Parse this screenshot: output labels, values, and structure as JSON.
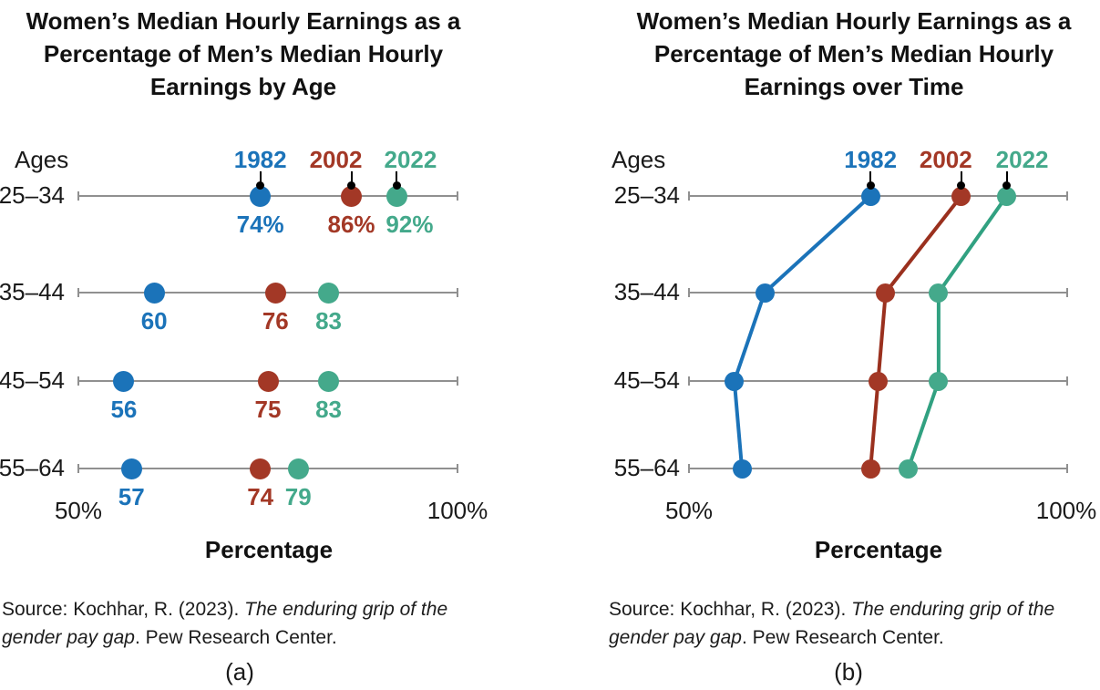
{
  "colors": {
    "background": "#ffffff",
    "axis_gray": "#909090",
    "text_black": "#1a1a1a",
    "leader_black": "#000000",
    "blue_1982": "#1b73b9",
    "red_2002": "#a33826",
    "green_2022": "#44a98b"
  },
  "chart_data": [
    {
      "type": "scatter",
      "title": "Women’s Median Hourly Earnings as a\nPercentage of Men’s Median Hourly\nEarnings by Age",
      "row_header": "Ages",
      "categories": [
        "25–34",
        "35–44",
        "45–54",
        "55–64"
      ],
      "series": [
        {
          "name": "1982",
          "color": "#1b73b9",
          "values": [
            74,
            60,
            56,
            57
          ],
          "point_labels": [
            "74%",
            "60",
            "56",
            "57"
          ]
        },
        {
          "name": "2002",
          "color": "#a33826",
          "values": [
            86,
            76,
            75,
            74
          ],
          "point_labels": [
            "86%",
            "76",
            "75",
            "74"
          ]
        },
        {
          "name": "2022",
          "color": "#44a98b",
          "values": [
            92,
            83,
            83,
            79
          ],
          "point_labels": [
            "92%",
            "83",
            "83",
            "79"
          ]
        }
      ],
      "xlabel": "Percentage",
      "xlim": [
        50,
        100
      ],
      "x_tick_labels": [
        "50%",
        "100%"
      ],
      "show_point_labels": true,
      "connect_points": false,
      "legend_position": "top",
      "grid": false,
      "source": {
        "prefix": "Source: Kochhar, R. (2023). ",
        "italic": "The enduring grip of the gender pay gap",
        "suffix": ". Pew Research Center."
      },
      "caption": "(a)"
    },
    {
      "type": "line",
      "title": "Women’s Median Hourly Earnings as a\nPercentage of Men’s Median Hourly\nEarnings over Time",
      "row_header": "Ages",
      "categories": [
        "25–34",
        "35–44",
        "45–54",
        "55–64"
      ],
      "series": [
        {
          "name": "1982",
          "color": "#1b73b9",
          "line_color": "#1b73b9",
          "values": [
            74,
            60,
            56,
            57
          ]
        },
        {
          "name": "2002",
          "color": "#a33826",
          "line_color": "#9a301e",
          "values": [
            86,
            76,
            75,
            74
          ]
        },
        {
          "name": "2022",
          "color": "#44a98b",
          "line_color": "#31a181",
          "values": [
            92,
            83,
            83,
            79
          ]
        }
      ],
      "xlabel": "Percentage",
      "xlim": [
        50,
        100
      ],
      "x_tick_labels": [
        "50%",
        "100%"
      ],
      "show_point_labels": false,
      "connect_points": true,
      "legend_position": "top",
      "grid": false,
      "source": {
        "prefix": "Source: Kochhar, R. (2023). ",
        "italic": "The enduring grip of the gender pay gap",
        "suffix": ". Pew Research Center."
      },
      "caption": "(b)"
    }
  ]
}
